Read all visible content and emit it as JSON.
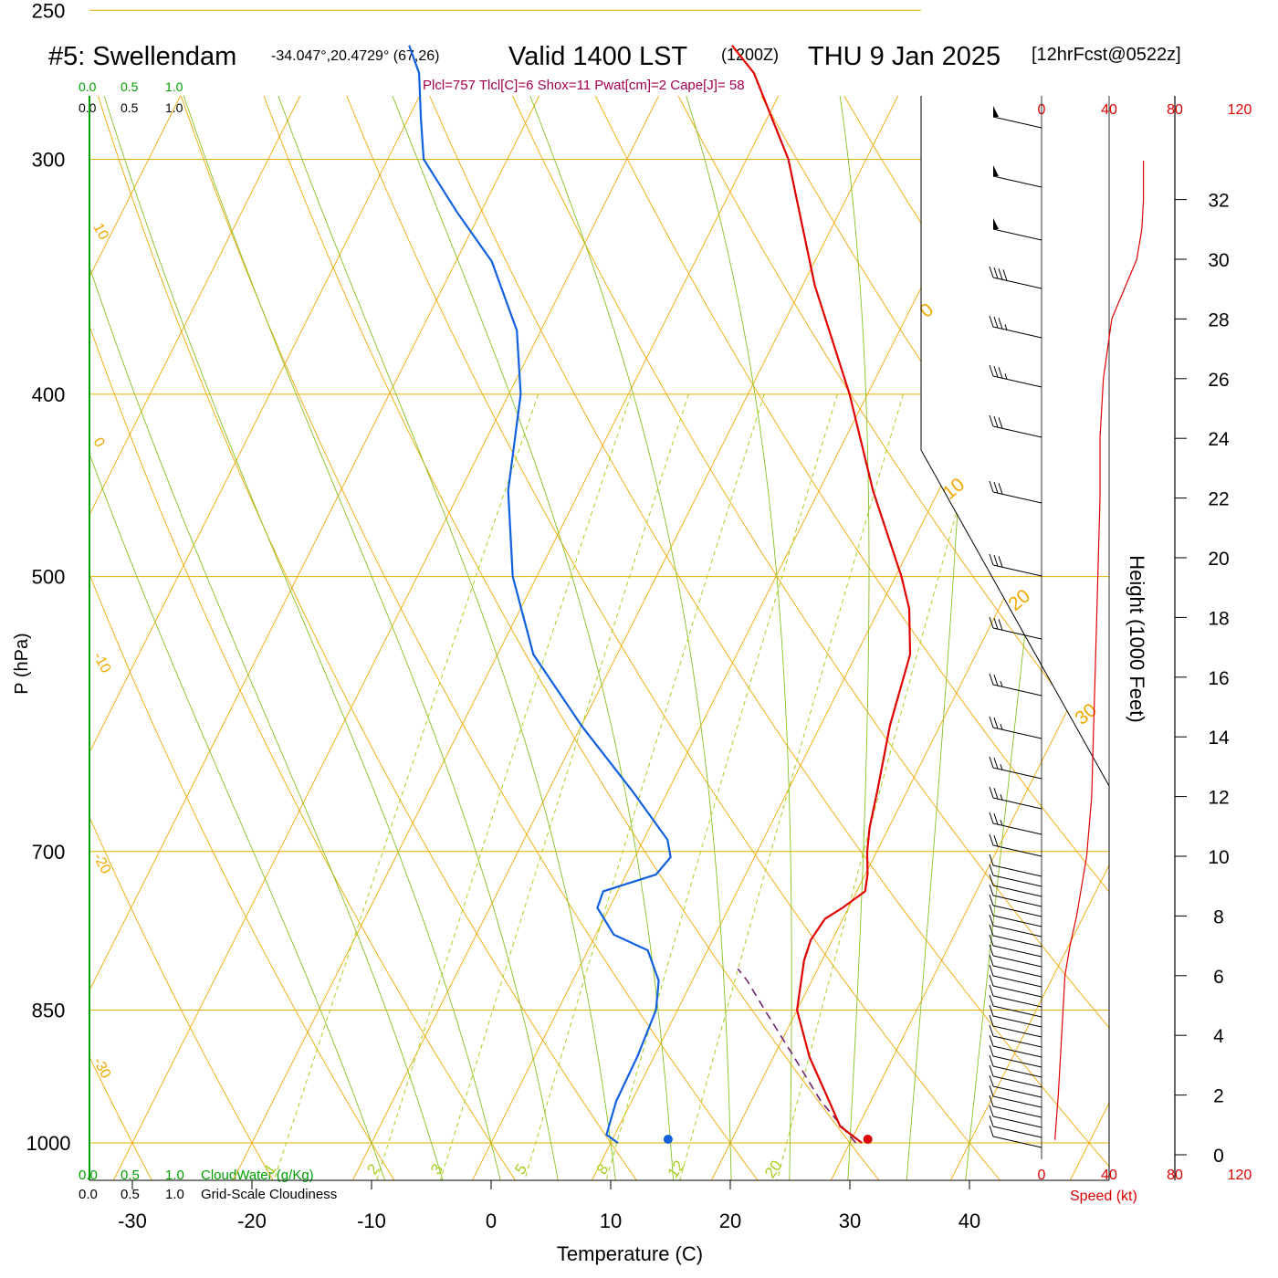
{
  "header": {
    "title_main": "#5: Swellendam",
    "coords": "-34.047°,20.4729° (67,26)",
    "valid": "Valid 1400 LST",
    "utc": "(1200Z)",
    "date": "THU 9 Jan 2025",
    "forecast": "[12hrFcst@0522z]",
    "indices": "Plcl=757 Tlcl[C]=6 Shox=11 Pwat[cm]=2 Cape[J]= 58"
  },
  "legend": {
    "cloudwater_ticks": [
      "0.0",
      "0.5",
      "1.0"
    ],
    "cloudiness_ticks": [
      "0.0",
      "0.5",
      "1.0"
    ],
    "cloudwater_label": "CloudWater (g/Kg)",
    "cloudiness_label": "Grid-Scale Cloudiness"
  },
  "colors": {
    "isobar": "#e8b000",
    "skew_isotherm": "#f0a800",
    "dry_adiabat": "#f0a800",
    "moist_adiabat": "#88c020",
    "mixing_ratio": "#a8d020",
    "temperature": "#e00000",
    "dewpoint": "#1060e0",
    "parcel": "#702070",
    "cloudwater": "#00a000",
    "indices": "#a00050",
    "speed": "#e00000"
  },
  "speed_panel": {
    "ticks": [
      "0",
      "40",
      "80",
      "120"
    ],
    "label": "Speed (kt)"
  },
  "chart_data": {
    "type": "skew-t",
    "xlabel": "Temperature (C)",
    "ylabel": "P (hPa)",
    "height_label": "Height (1000 Feet)",
    "x_ticks": [
      -30,
      -20,
      -10,
      0,
      10,
      20,
      30,
      40
    ],
    "p_ticks": [
      250,
      300,
      400,
      500,
      700,
      850,
      1000
    ],
    "height_ticks": [
      0,
      2,
      4,
      6,
      8,
      10,
      12,
      14,
      16,
      18,
      20,
      22,
      24,
      26,
      28,
      30,
      32
    ],
    "xlim": [
      -34,
      46
    ],
    "plim": [
      1090,
      250
    ],
    "isotherm_labels": [
      10,
      0,
      -10,
      -20,
      -30
    ],
    "dry_adiabat_labels": [
      0,
      10,
      20,
      30
    ],
    "mixing_ratio_labels": [
      "1",
      "2",
      "3",
      "5",
      "8",
      "12",
      "20"
    ],
    "mixing_ratio_values": [
      1,
      2,
      3,
      5,
      8,
      12,
      20
    ],
    "temperature": [
      {
        "p": 1000,
        "t": 31
      },
      {
        "p": 980,
        "t": 28.5
      },
      {
        "p": 950,
        "t": 26.5
      },
      {
        "p": 900,
        "t": 23
      },
      {
        "p": 850,
        "t": 20
      },
      {
        "p": 800,
        "t": 18.5
      },
      {
        "p": 780,
        "t": 18.2
      },
      {
        "p": 760,
        "t": 18.5
      },
      {
        "p": 750,
        "t": 19.5
      },
      {
        "p": 735,
        "t": 20.7
      },
      {
        "p": 720,
        "t": 20.2
      },
      {
        "p": 700,
        "t": 19.2
      },
      {
        "p": 680,
        "t": 18.4
      },
      {
        "p": 650,
        "t": 17.5
      },
      {
        "p": 600,
        "t": 15.8
      },
      {
        "p": 550,
        "t": 14.5
      },
      {
        "p": 520,
        "t": 12.5
      },
      {
        "p": 500,
        "t": 10.5
      },
      {
        "p": 450,
        "t": 4.5
      },
      {
        "p": 400,
        "t": -1.5
      },
      {
        "p": 350,
        "t": -9
      },
      {
        "p": 300,
        "t": -16.5
      },
      {
        "p": 270,
        "t": -23
      },
      {
        "p": 261,
        "t": -26
      }
    ],
    "dewpoint": [
      {
        "p": 1000,
        "t": 10.6
      },
      {
        "p": 990,
        "t": 9.3
      },
      {
        "p": 950,
        "t": 8.7
      },
      {
        "p": 900,
        "t": 8.6
      },
      {
        "p": 850,
        "t": 8.2
      },
      {
        "p": 820,
        "t": 7.2
      },
      {
        "p": 790,
        "t": 5.0
      },
      {
        "p": 775,
        "t": 1.5
      },
      {
        "p": 750,
        "t": -1
      },
      {
        "p": 735,
        "t": -1.2
      },
      {
        "p": 720,
        "t": 2.5
      },
      {
        "p": 705,
        "t": 3.0
      },
      {
        "p": 690,
        "t": 2.0
      },
      {
        "p": 650,
        "t": -3
      },
      {
        "p": 600,
        "t": -10
      },
      {
        "p": 550,
        "t": -17
      },
      {
        "p": 500,
        "t": -22
      },
      {
        "p": 450,
        "t": -26
      },
      {
        "p": 400,
        "t": -29
      },
      {
        "p": 370,
        "t": -32
      },
      {
        "p": 340,
        "t": -37
      },
      {
        "p": 320,
        "t": -42
      },
      {
        "p": 300,
        "t": -47
      },
      {
        "p": 285,
        "t": -49
      },
      {
        "p": 270,
        "t": -51
      },
      {
        "p": 261,
        "t": -53
      }
    ],
    "parcel": [
      {
        "p": 1000,
        "t": 30.5
      },
      {
        "p": 950,
        "t": 25.8
      },
      {
        "p": 900,
        "t": 21.7
      },
      {
        "p": 850,
        "t": 17.3
      },
      {
        "p": 820,
        "t": 14.6
      },
      {
        "p": 808,
        "t": 13.3
      }
    ],
    "surface_temperature": 31.5,
    "surface_dewpoint": 14.8,
    "speed_profile": [
      {
        "h": 0.5,
        "v": 8
      },
      {
        "h": 2,
        "v": 10
      },
      {
        "h": 4,
        "v": 12
      },
      {
        "h": 6,
        "v": 14
      },
      {
        "h": 7,
        "v": 17
      },
      {
        "h": 8,
        "v": 21
      },
      {
        "h": 9,
        "v": 24
      },
      {
        "h": 10,
        "v": 27
      },
      {
        "h": 12,
        "v": 30
      },
      {
        "h": 14,
        "v": 31
      },
      {
        "h": 16,
        "v": 32
      },
      {
        "h": 18,
        "v": 33
      },
      {
        "h": 20,
        "v": 34
      },
      {
        "h": 22,
        "v": 35
      },
      {
        "h": 24,
        "v": 35
      },
      {
        "h": 26,
        "v": 37
      },
      {
        "h": 28,
        "v": 42
      },
      {
        "h": 30,
        "v": 57
      },
      {
        "h": 31,
        "v": 60
      },
      {
        "h": 32,
        "v": 61
      },
      {
        "h": 33.3,
        "v": 61
      }
    ]
  }
}
